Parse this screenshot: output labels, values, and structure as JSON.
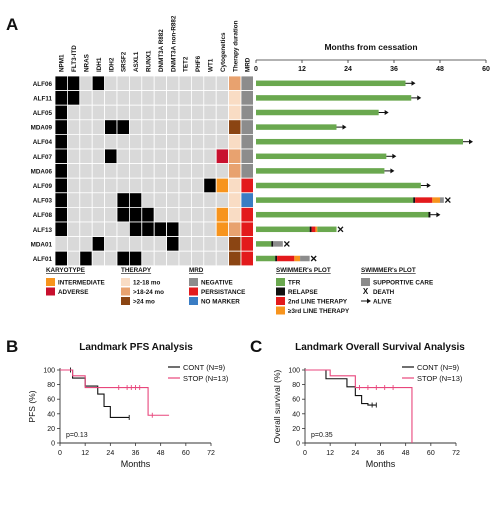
{
  "panel_labels": {
    "a": "A",
    "b": "B",
    "c": "C"
  },
  "chart_data": [
    {
      "type": "heatmap",
      "patients": [
        "ALF06",
        "ALF11",
        "ALF05",
        "MDA09",
        "ALF04",
        "ALF07",
        "MDA06",
        "ALF09",
        "ALF03",
        "ALF08",
        "ALF13",
        "MDA01",
        "ALF01"
      ],
      "genes": [
        "NPM1",
        "FLT3-ITD",
        "NRAS",
        "IDH1",
        "IDH2",
        "SRSF2",
        "ASXL1",
        "RUNX1",
        "DNMT3A R882",
        "DNMT3A non-R882",
        "TET2",
        "PHF6",
        "WT1"
      ],
      "mutated": [
        [
          0,
          1,
          3
        ],
        [
          0,
          1
        ],
        [
          0
        ],
        [
          0,
          4,
          5
        ],
        [
          0
        ],
        [
          0,
          4
        ],
        [
          0
        ],
        [
          0,
          12
        ],
        [
          0,
          5,
          6
        ],
        [
          0,
          5,
          6,
          7
        ],
        [
          0,
          6,
          7,
          8,
          9
        ],
        [
          3,
          9
        ],
        [
          0,
          2,
          5,
          6
        ]
      ],
      "extra_columns": [
        "Cytogenetics",
        "Therapy duration",
        "MRD"
      ],
      "cytogenetics": [
        "none",
        "none",
        "none",
        "none",
        "none",
        "adverse",
        "none",
        "intermediate",
        "none",
        "intermediate",
        "intermediate",
        "none",
        "none"
      ],
      "therapy_duration": [
        ">18-24 mo",
        "12-18 mo",
        "12-18 mo",
        ">24 mo",
        "12-18 mo",
        ">18-24 mo",
        ">18-24 mo",
        "12-18 mo",
        "12-18 mo",
        "12-18 mo",
        ">18-24 mo",
        ">24 mo",
        ">24 mo"
      ],
      "mrd": [
        "negative",
        "negative",
        "negative",
        "negative",
        "negative",
        "negative",
        "negative",
        "persistance",
        "no marker",
        "persistance",
        "persistance",
        "persistance",
        "persistance"
      ],
      "colors": {
        "mutated": "#000000",
        "wildtype": "#d9d9d9",
        "intermediate": "#f7941d",
        "adverse": "#c8102e",
        "12-18 mo": "#f9dcc4",
        ">18-24 mo": "#e8a26f",
        ">24 mo": "#8b4513",
        "negative": "#8c8c8c",
        "persistance": "#e31a1c",
        "no marker": "#3a7dc4"
      }
    },
    {
      "type": "swimmer",
      "title": "Months from cessation",
      "xlim": [
        0,
        60
      ],
      "xticks": [
        0,
        12,
        24,
        36,
        48,
        60
      ],
      "bars": [
        {
          "segments": [
            {
              "state": "tfr",
              "end": 39
            }
          ],
          "event": "alive"
        },
        {
          "segments": [
            {
              "state": "tfr",
              "end": 40.5
            }
          ],
          "event": "alive"
        },
        {
          "segments": [
            {
              "state": "tfr",
              "end": 32
            }
          ],
          "event": "alive"
        },
        {
          "segments": [
            {
              "state": "tfr",
              "end": 21
            }
          ],
          "event": "alive"
        },
        {
          "segments": [
            {
              "state": "tfr",
              "end": 54
            }
          ],
          "event": "alive"
        },
        {
          "segments": [
            {
              "state": "tfr",
              "end": 34
            }
          ],
          "event": "alive"
        },
        {
          "segments": [
            {
              "state": "tfr",
              "end": 33.5
            }
          ],
          "event": "alive"
        },
        {
          "segments": [
            {
              "state": "tfr",
              "end": 43
            }
          ],
          "event": "alive"
        },
        {
          "segments": [
            {
              "state": "tfr",
              "end": 41
            },
            {
              "state": "relapse",
              "end": 41.5
            },
            {
              "state": "second_line",
              "end": 46
            },
            {
              "state": "third_line",
              "end": 48
            },
            {
              "state": "supportive",
              "end": 49
            }
          ],
          "event": "death"
        },
        {
          "segments": [
            {
              "state": "tfr",
              "end": 45
            },
            {
              "state": "relapse",
              "end": 45.5
            }
          ],
          "event": "alive"
        },
        {
          "segments": [
            {
              "state": "tfr",
              "end": 14
            },
            {
              "state": "relapse",
              "end": 14.5
            },
            {
              "state": "second_line",
              "end": 15.5
            },
            {
              "state": "third_line",
              "end": 16
            },
            {
              "state": "tfr",
              "end": 21
            }
          ],
          "event": "death"
        },
        {
          "segments": [
            {
              "state": "tfr",
              "end": 4
            },
            {
              "state": "relapse",
              "end": 4.5
            },
            {
              "state": "supportive",
              "end": 7
            }
          ],
          "event": "death"
        },
        {
          "segments": [
            {
              "state": "tfr",
              "end": 5
            },
            {
              "state": "relapse",
              "end": 5.5
            },
            {
              "state": "second_line",
              "end": 10
            },
            {
              "state": "third_line",
              "end": 11.5
            },
            {
              "state": "supportive",
              "end": 14
            }
          ],
          "event": "death"
        }
      ],
      "colors": {
        "tfr": "#6aa84f",
        "relapse": "#111111",
        "second_line": "#e31a1c",
        "third_line": "#f7941d",
        "supportive": "#8c8c8c"
      }
    },
    {
      "type": "line",
      "subtype": "kaplan-meier",
      "title": "Landmark PFS Analysis",
      "ylabel": "PFS (%)",
      "xlabel": "Months",
      "xlim": [
        0,
        72
      ],
      "ylim": [
        0,
        100
      ],
      "xticks": [
        0,
        12,
        24,
        36,
        48,
        60,
        72
      ],
      "yticks": [
        0,
        20,
        40,
        60,
        80,
        100
      ],
      "pvalue": "p=0.13",
      "series": [
        {
          "name": "CONT (N=9)",
          "color": "#111111",
          "x": [
            0,
            6,
            6,
            12,
            12,
            18,
            18,
            21,
            21,
            24,
            24,
            33
          ],
          "y": [
            100,
            100,
            89,
            89,
            78,
            78,
            67,
            67,
            50,
            50,
            35,
            35
          ],
          "censors": [
            [
              5,
              100
            ],
            [
              33,
              35
            ]
          ]
        },
        {
          "name": "STOP (N=13)",
          "color": "#e8467c",
          "x": [
            0,
            6,
            6,
            12,
            12,
            30,
            30,
            42,
            42,
            52
          ],
          "y": [
            100,
            100,
            92,
            92,
            76,
            76,
            76,
            76,
            38,
            38
          ],
          "censors": [
            [
              28,
              76
            ],
            [
              32,
              76
            ],
            [
              34,
              76
            ],
            [
              36,
              76
            ],
            [
              38,
              76
            ],
            [
              44,
              38
            ]
          ]
        }
      ]
    },
    {
      "type": "line",
      "subtype": "kaplan-meier",
      "title": "Landmark Overall Survival Analysis",
      "ylabel": "Overall survival (%)",
      "xlabel": "Months",
      "xlim": [
        0,
        72
      ],
      "ylim": [
        0,
        100
      ],
      "xticks": [
        0,
        12,
        24,
        36,
        48,
        60,
        72
      ],
      "yticks": [
        0,
        20,
        40,
        60,
        80,
        100
      ],
      "pvalue": "p=0.35",
      "series": [
        {
          "name": "CONT (N=9)",
          "color": "#111111",
          "x": [
            0,
            10,
            10,
            20,
            20,
            24,
            24,
            27,
            27,
            30,
            30,
            34
          ],
          "y": [
            100,
            100,
            88,
            88,
            77,
            77,
            65,
            65,
            54,
            54,
            52,
            52
          ],
          "censors": [
            [
              32,
              52
            ],
            [
              34,
              52
            ]
          ]
        },
        {
          "name": "STOP (N=13)",
          "color": "#e8467c",
          "x": [
            0,
            12,
            12,
            24,
            24,
            51,
            51
          ],
          "y": [
            100,
            100,
            92,
            92,
            76,
            76,
            0
          ],
          "censors": [
            [
              26,
              76
            ],
            [
              30,
              76
            ],
            [
              34,
              76
            ],
            [
              38,
              76
            ],
            [
              42,
              76
            ]
          ]
        }
      ]
    }
  ],
  "legend": {
    "karyotype": {
      "title": "KARYOTYPE",
      "items": [
        {
          "label": "INTERMEDIATE",
          "color": "#f7941d"
        },
        {
          "label": "ADVERSE",
          "color": "#c8102e"
        }
      ]
    },
    "therapy": {
      "title": "THERAPY",
      "items": [
        {
          "label": "12-18 mo",
          "color": "#f9dcc4"
        },
        {
          "label": ">18-24 mo",
          "color": "#e8a26f"
        },
        {
          "label": ">24 mo",
          "color": "#8b4513"
        }
      ]
    },
    "mrd": {
      "title": "MRD",
      "items": [
        {
          "label": "NEGATIVE",
          "color": "#8c8c8c"
        },
        {
          "label": "PERSISTANCE",
          "color": "#e31a1c"
        },
        {
          "label": "NO MARKER",
          "color": "#3a7dc4"
        }
      ]
    },
    "swimmer1": {
      "title": "SWIMMER's PLOT",
      "items": [
        {
          "label": "TFR",
          "color": "#6aa84f"
        },
        {
          "label": "RELAPSE",
          "color": "#111111"
        },
        {
          "label": "2nd LINE THERAPY",
          "color": "#e31a1c"
        },
        {
          "label": "≥3rd LINE THERAPY",
          "color": "#f7941d"
        }
      ]
    },
    "swimmer2": {
      "title": "SWIMMER's PLOT",
      "items": [
        {
          "label": "SUPPORTIVE CARE",
          "color": "#8c8c8c",
          "kind": "box"
        },
        {
          "label": "DEATH",
          "kind": "x",
          "glyph": "X"
        },
        {
          "label": "ALIVE",
          "kind": "arrow"
        }
      ]
    }
  }
}
